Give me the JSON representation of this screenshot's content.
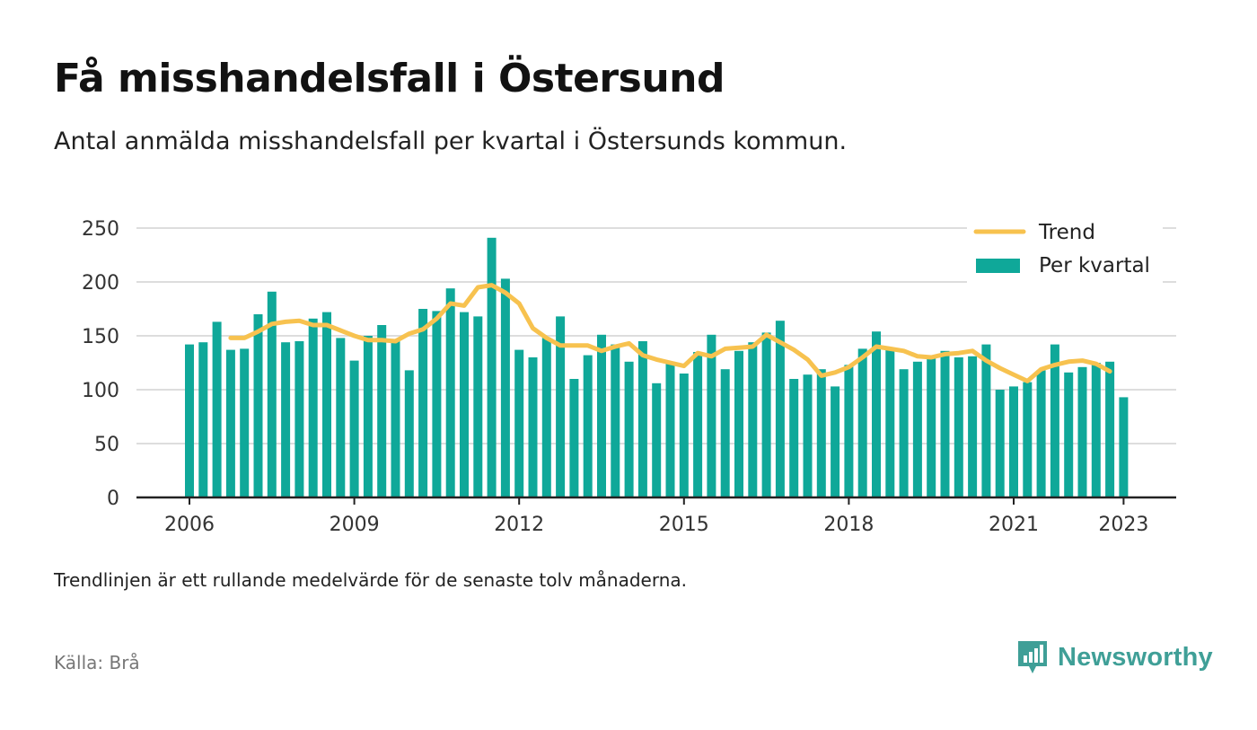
{
  "header": {
    "title": "Få misshandelsfall i Östersund",
    "subtitle": "Antal anmälda misshandelsfall per kvartal i Östersunds kommun."
  },
  "footer": {
    "note": "Trendlinjen är ett rullande medelvärde för de senaste tolv månaderna.",
    "source": "Källa: Brå",
    "brand": "Newsworthy",
    "brand_icon": "bar-chart-badge-icon"
  },
  "colors": {
    "bars": "#0fa899",
    "trend": "#f7c24f",
    "grid": "#dddddd",
    "axis": "#222222",
    "brand": "#3f9f97"
  },
  "chart_data": {
    "type": "bar",
    "x_start": "2006 Q1",
    "ylim": [
      0,
      250
    ],
    "yticks": [
      0,
      50,
      100,
      150,
      200,
      250
    ],
    "xticks": [
      {
        "label": "2006",
        "index": 0
      },
      {
        "label": "2009",
        "index": 12
      },
      {
        "label": "2012",
        "index": 24
      },
      {
        "label": "2015",
        "index": 36
      },
      {
        "label": "2018",
        "index": 48
      },
      {
        "label": "2021",
        "index": 60
      },
      {
        "label": "2023",
        "index": 68
      }
    ],
    "grid": true,
    "legend_position": "top-right",
    "series": [
      {
        "name": "Per kvartal",
        "type": "bar",
        "values": [
          142,
          144,
          163,
          137,
          138,
          170,
          191,
          144,
          145,
          166,
          172,
          148,
          127,
          150,
          160,
          147,
          118,
          175,
          173,
          194,
          172,
          168,
          241,
          203,
          137,
          130,
          148,
          168,
          110,
          132,
          151,
          142,
          126,
          145,
          106,
          126,
          115,
          135,
          151,
          119,
          136,
          144,
          153,
          164,
          110,
          114,
          119,
          103,
          123,
          138,
          154,
          137,
          119,
          126,
          129,
          136,
          130,
          131,
          142,
          100,
          103,
          107,
          118,
          142,
          116,
          121,
          125,
          126,
          93
        ]
      },
      {
        "name": "Trend",
        "type": "line",
        "start_index": 3,
        "values": [
          148,
          148,
          154,
          161,
          163,
          164,
          160,
          160,
          155,
          150,
          146,
          146,
          145,
          152,
          156,
          166,
          180,
          178,
          195,
          197,
          190,
          180,
          157,
          148,
          141,
          141,
          141,
          136,
          140,
          143,
          132,
          128,
          125,
          122,
          134,
          131,
          138,
          139,
          140,
          151,
          144,
          137,
          128,
          113,
          116,
          121,
          130,
          140,
          138,
          136,
          131,
          130,
          133,
          134,
          136,
          127,
          120,
          114,
          108,
          119,
          123,
          126,
          127,
          124,
          117
        ]
      }
    ]
  }
}
